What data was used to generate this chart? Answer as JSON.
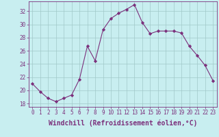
{
  "x": [
    0,
    1,
    2,
    3,
    4,
    5,
    6,
    7,
    8,
    9,
    10,
    11,
    12,
    13,
    14,
    15,
    16,
    17,
    18,
    19,
    20,
    21,
    22,
    23
  ],
  "y": [
    21.0,
    19.8,
    18.8,
    18.3,
    18.8,
    19.3,
    21.7,
    26.7,
    24.5,
    29.2,
    30.9,
    31.7,
    32.3,
    33.0,
    30.3,
    28.6,
    29.0,
    29.0,
    29.0,
    28.7,
    26.7,
    25.3,
    23.8,
    21.5
  ],
  "line_color": "#7b2f7b",
  "marker": "D",
  "marker_size": 2.2,
  "bg_color": "#c8eef0",
  "grid_color": "#a0c8c8",
  "xlabel": "Windchill (Refroidissement éolien,°C)",
  "ylim": [
    17.5,
    33.5
  ],
  "xlim": [
    -0.5,
    23.5
  ],
  "yticks": [
    18,
    20,
    22,
    24,
    26,
    28,
    30,
    32
  ],
  "xticks": [
    0,
    1,
    2,
    3,
    4,
    5,
    6,
    7,
    8,
    9,
    10,
    11,
    12,
    13,
    14,
    15,
    16,
    17,
    18,
    19,
    20,
    21,
    22,
    23
  ],
  "axis_color": "#7b2f7b",
  "tick_color": "#7b2f7b",
  "label_fontsize": 7,
  "tick_fontsize": 5.5
}
